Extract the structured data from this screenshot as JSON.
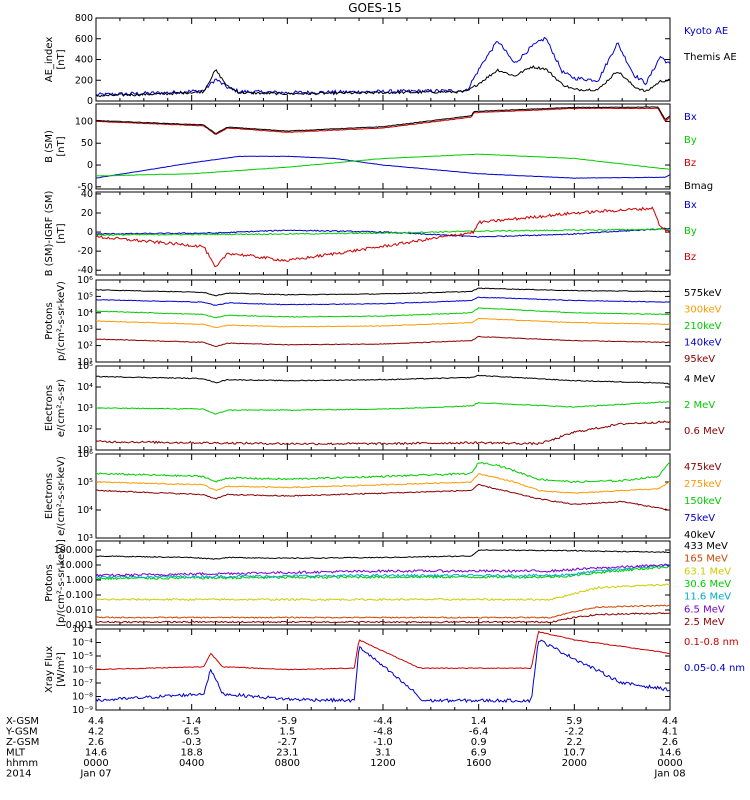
{
  "title": "GOES-15",
  "x_axis": {
    "tick_values": [
      0,
      4,
      8,
      12,
      16,
      20,
      24
    ],
    "rows": [
      {
        "label": "X-GSM",
        "values": [
          "4.4",
          "-1.4",
          "-5.9",
          "-4.4",
          "1.4",
          "5.9",
          "4.4"
        ]
      },
      {
        "label": "Y-GSM",
        "values": [
          "4.2",
          "6.5",
          "1.5",
          "-4.8",
          "-6.4",
          "-2.2",
          "4.1"
        ]
      },
      {
        "label": "Z-GSM",
        "values": [
          "2.6",
          "-0.3",
          "-2.7",
          "-1.0",
          "0.9",
          "2.2",
          "2.6"
        ]
      },
      {
        "label": "MLT",
        "values": [
          "14.6",
          "18.8",
          "23.1",
          "3.1",
          "6.9",
          "10.7",
          "14.6"
        ]
      },
      {
        "label": "hhmm",
        "values": [
          "0000",
          "0400",
          "0800",
          "1200",
          "1600",
          "2000",
          "0000"
        ]
      },
      {
        "label": "2014",
        "values": [
          "Jan 07",
          "",
          "",
          "",
          "",
          "",
          "Jan 08"
        ]
      }
    ]
  },
  "chart_data": [
    {
      "type": "line",
      "ylabel": "AE_index",
      "yunit": "[nT]",
      "scale": "linear",
      "ylim": [
        0,
        800
      ],
      "tick_values": [
        0,
        200,
        400,
        600,
        800
      ],
      "tick_labels": [
        "0",
        "200",
        "400",
        "600",
        "800"
      ],
      "series": [
        {
          "name": "Kyoto AE",
          "color": "#0000cc",
          "noise": 18,
          "x": [
            0,
            3,
            4.5,
            5,
            5.5,
            6,
            8,
            12,
            15.5,
            16.2,
            16.8,
            17.5,
            18.2,
            18.8,
            19.5,
            20,
            21,
            21.8,
            22.5,
            23,
            23.6,
            24
          ],
          "y": [
            60,
            80,
            100,
            210,
            130,
            90,
            80,
            90,
            100,
            380,
            580,
            360,
            520,
            610,
            280,
            220,
            200,
            560,
            250,
            170,
            430,
            350
          ]
        },
        {
          "name": "Themis AE",
          "color": "#000000",
          "noise": 12,
          "x": [
            0,
            3,
            4.5,
            5,
            5.5,
            6,
            8,
            12,
            15.5,
            16.2,
            16.8,
            17.5,
            18.2,
            18.8,
            19.5,
            20,
            21,
            21.8,
            22.5,
            23,
            23.6,
            24
          ],
          "y": [
            50,
            70,
            90,
            300,
            140,
            80,
            70,
            80,
            90,
            200,
            300,
            240,
            330,
            310,
            160,
            110,
            110,
            290,
            140,
            90,
            190,
            200
          ]
        }
      ]
    },
    {
      "type": "line",
      "ylabel": "B (SM)",
      "yunit": "[nT]",
      "scale": "linear",
      "ylim": [
        -55,
        140
      ],
      "tick_values": [
        -50,
        0,
        50,
        100
      ],
      "tick_labels": [
        "-50",
        "0",
        "50",
        "100"
      ],
      "series": [
        {
          "name": "Bx",
          "color": "#0000cc",
          "noise": 0.4,
          "x": [
            0,
            4,
            6,
            8,
            10,
            12,
            16,
            20,
            23.8,
            24
          ],
          "y": [
            -30,
            5,
            20,
            20,
            15,
            0,
            -20,
            -30,
            -28,
            -22
          ]
        },
        {
          "name": "By",
          "color": "#00cc00",
          "noise": 0.4,
          "x": [
            0,
            4,
            8,
            12,
            16,
            20,
            24
          ],
          "y": [
            -25,
            -20,
            -5,
            15,
            25,
            15,
            -10
          ]
        },
        {
          "name": "Bz",
          "color": "#cc0000",
          "noise": 0.6,
          "x": [
            0,
            4.5,
            5,
            5.5,
            8,
            12,
            15.7,
            15.8,
            20,
            23.5,
            23.8,
            24
          ],
          "y": [
            100,
            90,
            70,
            85,
            75,
            85,
            110,
            120,
            130,
            130,
            100,
            110
          ]
        },
        {
          "name": "Bmag",
          "color": "#000000",
          "noise": 0.6,
          "x": [
            0,
            4.5,
            5,
            5.5,
            8,
            12,
            15.7,
            15.8,
            20,
            23.5,
            23.8,
            24
          ],
          "y": [
            102,
            92,
            72,
            87,
            78,
            88,
            113,
            123,
            132,
            133,
            104,
            113
          ]
        }
      ]
    },
    {
      "type": "line",
      "ylabel": "B (SM)-IGRF (SM)",
      "yunit": "[nT]",
      "scale": "linear",
      "ylim": [
        -45,
        42
      ],
      "tick_values": [
        -40,
        -20,
        0,
        20,
        40
      ],
      "tick_labels": [
        "-40",
        "-20",
        "0",
        "20",
        "40"
      ],
      "series": [
        {
          "name": "Bx",
          "color": "#0000cc",
          "noise": 0.6,
          "x": [
            0,
            5,
            8,
            12,
            16,
            20,
            24
          ],
          "y": [
            -2,
            -1,
            2,
            0,
            -5,
            -2,
            4
          ]
        },
        {
          "name": "By",
          "color": "#00cc00",
          "noise": 0.6,
          "x": [
            0,
            8,
            12,
            16,
            20,
            24
          ],
          "y": [
            -3,
            -2,
            -1,
            1,
            2,
            3
          ]
        },
        {
          "name": "Bz",
          "color": "#cc0000",
          "noise": 1.5,
          "x": [
            0,
            4.5,
            5,
            5.5,
            8,
            12,
            15.8,
            16,
            20,
            23.3,
            23.6,
            24
          ],
          "y": [
            -5,
            -15,
            -38,
            -22,
            -30,
            -15,
            0,
            10,
            20,
            25,
            5,
            0
          ]
        }
      ]
    },
    {
      "type": "line",
      "ylabel": "Protons",
      "yunit": "p/(cm²-s-sr-keV)",
      "scale": "log",
      "ylim": [
        1,
        6
      ],
      "tick_values": [
        1,
        2,
        3,
        4,
        5,
        6
      ],
      "tick_labels": [
        "10¹",
        "10²",
        "10³",
        "10⁴",
        "10⁵",
        "10⁶"
      ],
      "series": [
        {
          "name": "575keV",
          "color": "#000000",
          "noise": 0.02,
          "x": [
            0,
            4.5,
            5,
            5.5,
            8,
            12,
            15.7,
            16,
            20,
            24
          ],
          "y": [
            5.4,
            5.25,
            5.05,
            5.2,
            5.1,
            5.15,
            5.3,
            5.5,
            5.35,
            5.3
          ]
        },
        {
          "name": "300keV",
          "color": "#ff9900",
          "noise": 0.02,
          "x": [
            0,
            4.5,
            5,
            5.5,
            8,
            12,
            15.7,
            16,
            20,
            24
          ],
          "y": [
            3.5,
            3.3,
            3.1,
            3.25,
            3.15,
            3.2,
            3.4,
            3.65,
            3.4,
            3.3
          ]
        },
        {
          "name": "210keV",
          "color": "#00cc00",
          "noise": 0.02,
          "x": [
            0,
            4.5,
            5,
            5.5,
            8,
            12,
            15.7,
            16,
            20,
            24
          ],
          "y": [
            4.1,
            3.9,
            3.7,
            3.85,
            3.75,
            3.8,
            4.0,
            4.3,
            4.0,
            3.9
          ]
        },
        {
          "name": "140keV",
          "color": "#0000cc",
          "noise": 0.02,
          "x": [
            0,
            4.5,
            5,
            5.5,
            8,
            12,
            15.7,
            16,
            20,
            24
          ],
          "y": [
            4.8,
            4.65,
            4.45,
            4.6,
            4.5,
            4.55,
            4.75,
            4.95,
            4.75,
            4.65
          ]
        },
        {
          "name": "95keV",
          "color": "#880000",
          "noise": 0.02,
          "x": [
            0,
            4.5,
            5,
            5.5,
            8,
            12,
            15.7,
            16,
            20,
            24
          ],
          "y": [
            2.4,
            2.2,
            1.95,
            2.15,
            2.05,
            2.1,
            2.3,
            2.55,
            2.3,
            2.2
          ]
        }
      ]
    },
    {
      "type": "line",
      "ylabel": "Electrons",
      "yunit": "e/(cm²-s-sr)",
      "scale": "log",
      "ylim": [
        1,
        5
      ],
      "tick_values": [
        1,
        2,
        3,
        4,
        5
      ],
      "tick_labels": [
        "10¹",
        "10²",
        "10³",
        "10⁴",
        "10⁵"
      ],
      "series": [
        {
          "name": "4 MeV",
          "color": "#000000",
          "noise": 0.02,
          "x": [
            0,
            4.5,
            5,
            5.5,
            8,
            12,
            15.7,
            16,
            20,
            23.5,
            24
          ],
          "y": [
            4.5,
            4.4,
            4.2,
            4.35,
            4.3,
            4.35,
            4.45,
            4.55,
            4.3,
            4.2,
            4.15
          ]
        },
        {
          "name": "2 MeV",
          "color": "#00cc00",
          "noise": 0.02,
          "x": [
            0,
            4.5,
            5,
            5.5,
            8,
            12,
            15.7,
            16,
            20,
            24
          ],
          "y": [
            3.0,
            2.95,
            2.7,
            2.9,
            2.9,
            2.95,
            3.1,
            3.25,
            3.05,
            3.3
          ]
        },
        {
          "name": "0.6 MeV",
          "color": "#880000",
          "noise": 0.05,
          "x": [
            0,
            4,
            8,
            12,
            16,
            18.5,
            19,
            20,
            22,
            24
          ],
          "y": [
            1.4,
            1.35,
            1.3,
            1.3,
            1.35,
            1.3,
            1.45,
            1.85,
            2.25,
            2.35
          ]
        }
      ]
    },
    {
      "type": "line",
      "ylabel": "Electrons",
      "yunit": "e/(cm²-s-sr-keV)",
      "scale": "log",
      "ylim": [
        3,
        6
      ],
      "tick_values": [
        3,
        4,
        5,
        6
      ],
      "tick_labels": [
        "10³",
        "10⁴",
        "10⁵",
        "10⁶"
      ],
      "series": [
        {
          "name": "475keV",
          "color": "#880000",
          "noise": 0.02,
          "x": [
            0,
            4.5,
            5,
            5.5,
            8,
            12,
            15.7,
            16,
            17.5,
            18.5,
            20,
            22,
            24
          ],
          "y": [
            4.7,
            4.55,
            4.4,
            4.55,
            4.5,
            4.6,
            4.7,
            4.9,
            4.6,
            4.4,
            4.2,
            4.3,
            4.0
          ]
        },
        {
          "name": "275keV",
          "color": "#ff9900",
          "noise": 0.02,
          "x": [
            0,
            4.5,
            5,
            5.5,
            8,
            12,
            15.7,
            16,
            17.5,
            18.5,
            20,
            22,
            23.5,
            24
          ],
          "y": [
            5.0,
            4.9,
            4.7,
            4.85,
            4.8,
            4.9,
            5.0,
            5.3,
            5.0,
            4.7,
            4.6,
            4.7,
            4.75,
            5.0
          ]
        },
        {
          "name": "150keV",
          "color": "#00cc00",
          "noise": 0.03,
          "x": [
            0,
            4.5,
            5,
            5.5,
            8,
            12,
            15.7,
            16,
            16.8,
            17.5,
            18.5,
            20,
            22,
            23.5,
            24
          ],
          "y": [
            5.3,
            5.2,
            5.0,
            5.15,
            5.1,
            5.2,
            5.3,
            5.7,
            5.6,
            5.4,
            5.1,
            5.0,
            5.05,
            5.2,
            5.7
          ]
        },
        {
          "name": "75keV",
          "color": "#0000cc",
          "noise": 0.02,
          "x": [
            0,
            24
          ],
          "y": [
            5.1,
            5.1
          ],
          "hidden": true
        },
        {
          "name": "40keV",
          "color": "#000000",
          "noise": 0.02,
          "x": [
            0,
            24
          ],
          "y": [
            5.2,
            5.2
          ],
          "hidden": true
        }
      ]
    },
    {
      "type": "line",
      "ylabel": "Protons",
      "yunit": "[p/(cm²-s-sr-keV)]",
      "scale": "log",
      "ylim": [
        -3,
        2.6
      ],
      "tick_values": [
        -3,
        -2,
        -1,
        0,
        1,
        2
      ],
      "tick_labels": [
        "0.001",
        "0.010",
        "0.100",
        "1.000",
        "10.000",
        "100.000"
      ],
      "series": [
        {
          "name": "433 MeV",
          "color": "#000000",
          "noise": 0.03,
          "x": [
            0,
            4,
            5,
            5.5,
            8,
            12,
            15.7,
            16,
            20,
            24
          ],
          "y": [
            1.6,
            1.5,
            1.4,
            1.5,
            1.45,
            1.5,
            1.6,
            2.0,
            1.95,
            1.85
          ]
        },
        {
          "name": "165 MeV",
          "color": "#cc4400",
          "noise": 0.04,
          "x": [
            0,
            12,
            19,
            20,
            21,
            24
          ],
          "y": [
            -2.5,
            -2.5,
            -2.5,
            -2.1,
            -1.8,
            -1.7
          ]
        },
        {
          "name": "63.1 MeV",
          "color": "#cccc00",
          "noise": 0.06,
          "x": [
            0,
            12,
            19,
            20,
            21,
            24
          ],
          "y": [
            -1.3,
            -1.3,
            -1.3,
            -0.9,
            -0.5,
            -0.3
          ]
        },
        {
          "name": "30.6 MeV",
          "color": "#00cc00",
          "noise": 0.08,
          "x": [
            0,
            12,
            19,
            20,
            21,
            24
          ],
          "y": [
            0.1,
            0.2,
            0.2,
            0.3,
            0.5,
            0.9
          ]
        },
        {
          "name": "11.6 MeV",
          "color": "#00aacc",
          "noise": 0.08,
          "x": [
            0,
            12,
            19,
            20,
            21,
            24
          ],
          "y": [
            0.2,
            0.3,
            0.3,
            0.4,
            0.6,
            1.0
          ]
        },
        {
          "name": "6.5 MeV",
          "color": "#7700cc",
          "noise": 0.08,
          "x": [
            0,
            12,
            19,
            20,
            21,
            24
          ],
          "y": [
            0.3,
            0.6,
            0.6,
            0.7,
            0.8,
            1.0
          ]
        },
        {
          "name": "2.5 MeV",
          "color": "#880000",
          "noise": 0.05,
          "x": [
            0,
            12,
            19,
            20,
            21,
            24
          ],
          "y": [
            -2.8,
            -2.8,
            -2.8,
            -2.5,
            -2.3,
            -2.2
          ]
        }
      ]
    },
    {
      "type": "line",
      "ylabel": "Xray Flux",
      "yunit": "[W/m²]",
      "scale": "log",
      "ylim": [
        -9,
        -3
      ],
      "tick_values": [
        -9,
        -8,
        -7,
        -6,
        -5,
        -4,
        -3
      ],
      "tick_labels": [
        "10⁻⁹",
        "10⁻⁸",
        "10⁻⁷",
        "10⁻⁶",
        "10⁻⁵",
        "10⁻⁴",
        "10⁻³"
      ],
      "series": [
        {
          "name": "0.1-0.8 nm",
          "color": "#cc0000",
          "noise": 0.03,
          "x": [
            0,
            4.5,
            4.8,
            5.3,
            8,
            10.8,
            11,
            13.4,
            13.6,
            18.2,
            18.5,
            20,
            24
          ],
          "y": [
            -6.0,
            -5.8,
            -4.8,
            -5.8,
            -6.0,
            -5.9,
            -3.8,
            -5.8,
            -5.9,
            -5.9,
            -3.2,
            -3.8,
            -4.8
          ]
        },
        {
          "name": "0.05-0.4 nm",
          "color": "#0000cc",
          "noise": 0.12,
          "x": [
            0,
            4.5,
            4.8,
            5.3,
            8,
            10.8,
            11,
            13.4,
            13.6,
            18.2,
            18.5,
            20,
            22,
            24
          ],
          "y": [
            -8.3,
            -7.8,
            -6.0,
            -7.8,
            -8.2,
            -8.3,
            -4.3,
            -7.8,
            -8.3,
            -8.3,
            -3.8,
            -5.2,
            -7.0,
            -7.5
          ]
        }
      ]
    }
  ]
}
